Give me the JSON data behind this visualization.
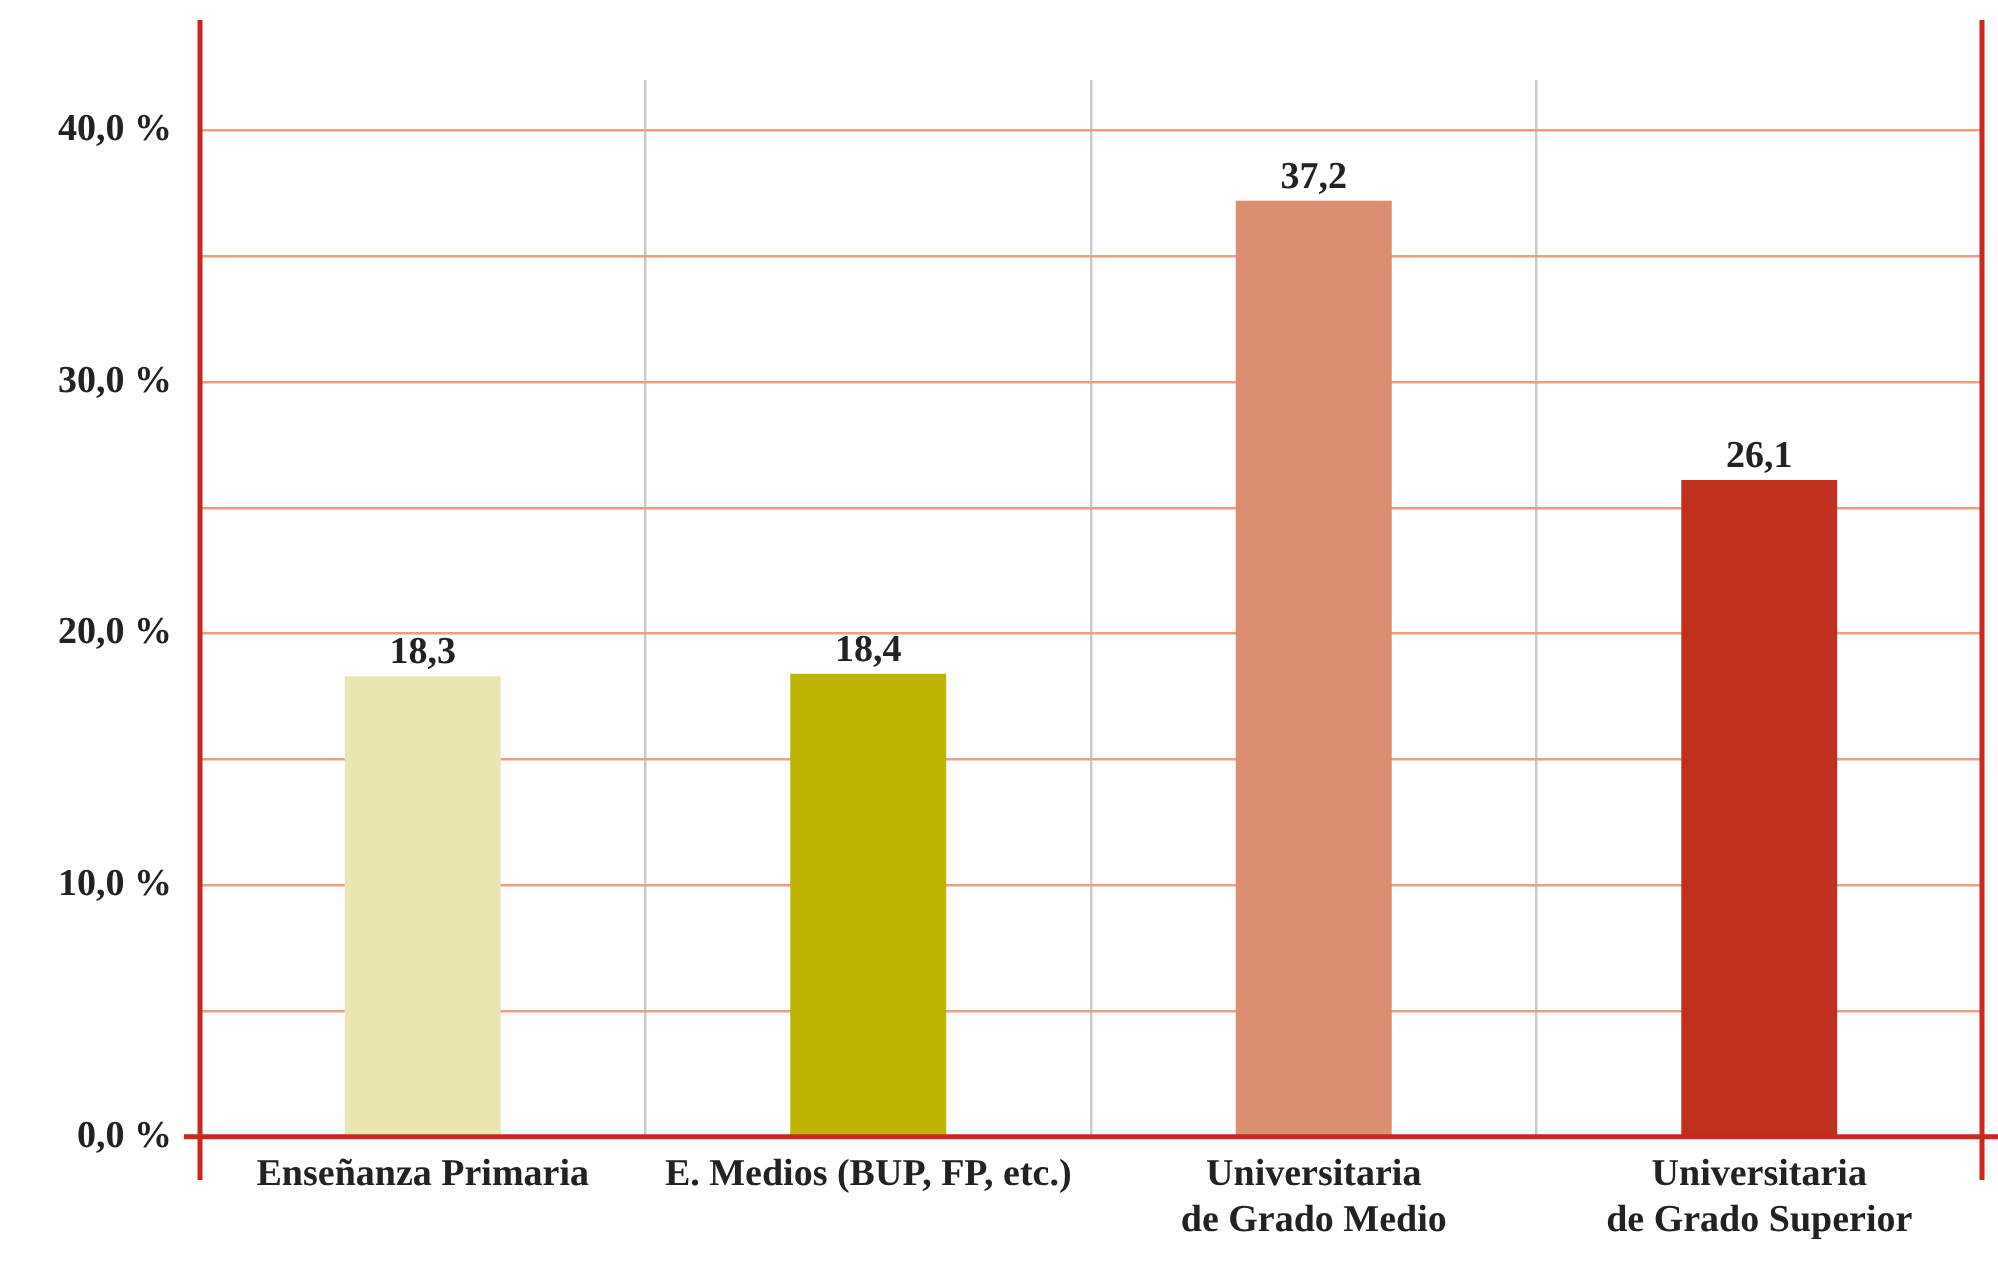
{
  "chart_data": {
    "type": "bar",
    "categories": [
      "Enseñanza Primaria",
      "E. Medios (BUP, FP, etc.)",
      "Universitaria\nde Grado Medio",
      "Universitaria\nde Grado Superior"
    ],
    "values": [
      18.3,
      18.4,
      37.2,
      26.1
    ],
    "colors": [
      "#ebe5b3",
      "#bfb300",
      "#dc8e70",
      "#c0301c"
    ],
    "value_labels": [
      "18,3",
      "18,4",
      "37,2",
      "26,1"
    ],
    "ylim": [
      0,
      42
    ],
    "yticks": [
      {
        "value": 0,
        "label": "0,0 %"
      },
      {
        "value": 5,
        "label": null
      },
      {
        "value": 10,
        "label": "10,0 %"
      },
      {
        "value": 15,
        "label": null
      },
      {
        "value": 20,
        "label": "20,0 %"
      },
      {
        "value": 25,
        "label": null
      },
      {
        "value": 30,
        "label": "30,0 %"
      },
      {
        "value": 35,
        "label": null
      },
      {
        "value": 40,
        "label": "40,0 %"
      }
    ],
    "grid": true
  }
}
